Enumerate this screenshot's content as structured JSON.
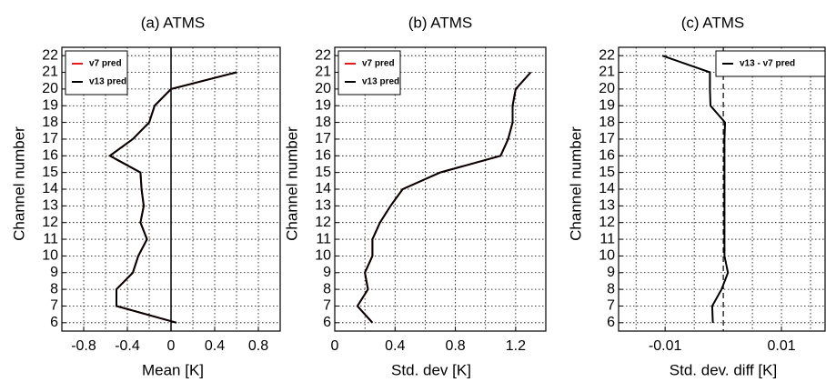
{
  "chart_data": [
    {
      "type": "line",
      "title": "(a) ATMS",
      "xlabel": "Mean [K]",
      "ylabel": "Channel number",
      "y": [
        6,
        7,
        8,
        9,
        10,
        11,
        12,
        13,
        14,
        15,
        16,
        17,
        18,
        19,
        20,
        21
      ],
      "series": [
        {
          "name": "v7 pred",
          "color": "#e41a1c",
          "values": [
            0.05,
            -0.5,
            -0.5,
            -0.35,
            -0.3,
            -0.22,
            -0.28,
            -0.25,
            -0.27,
            -0.28,
            -0.56,
            -0.35,
            -0.2,
            -0.15,
            0.0,
            0.6
          ]
        },
        {
          "name": "v13 pred",
          "color": "#000000",
          "values": [
            0.05,
            -0.5,
            -0.5,
            -0.35,
            -0.3,
            -0.22,
            -0.28,
            -0.25,
            -0.27,
            -0.28,
            -0.56,
            -0.35,
            -0.2,
            -0.15,
            0.0,
            0.6
          ]
        }
      ],
      "xlim": [
        -1,
        1
      ],
      "xticks": [
        -0.8,
        -0.4,
        0,
        0.4,
        0.8
      ],
      "xminor": [
        -0.6,
        -0.2,
        0.2,
        0.6
      ],
      "ylim": [
        5.5,
        22.5
      ],
      "yticks": [
        6,
        7,
        8,
        9,
        10,
        11,
        12,
        13,
        14,
        15,
        16,
        17,
        18,
        19,
        20,
        21,
        22
      ],
      "grid": true,
      "reference_line": 0,
      "reference_style": "solid",
      "legend": "upper left"
    },
    {
      "type": "line",
      "title": "(b) ATMS",
      "xlabel": "Std. dev  [K]",
      "ylabel": "Channel number",
      "y": [
        6,
        7,
        8,
        9,
        10,
        11,
        12,
        13,
        14,
        15,
        16,
        17,
        18,
        19,
        20,
        21
      ],
      "series": [
        {
          "name": "v7 pred",
          "color": "#e41a1c",
          "values": [
            0.25,
            0.15,
            0.22,
            0.2,
            0.25,
            0.25,
            0.3,
            0.37,
            0.45,
            0.7,
            1.1,
            1.15,
            1.18,
            1.18,
            1.2,
            1.3
          ]
        },
        {
          "name": "v13 pred",
          "color": "#000000",
          "values": [
            0.25,
            0.15,
            0.22,
            0.2,
            0.25,
            0.25,
            0.3,
            0.37,
            0.45,
            0.7,
            1.1,
            1.15,
            1.18,
            1.18,
            1.2,
            1.3
          ]
        }
      ],
      "xlim": [
        0,
        1.4
      ],
      "xticks": [
        0,
        0.4,
        0.8,
        1.2
      ],
      "xminor": [
        0.2,
        0.6,
        1.0
      ],
      "ylim": [
        5.5,
        22.5
      ],
      "yticks": [
        6,
        7,
        8,
        9,
        10,
        11,
        12,
        13,
        14,
        15,
        16,
        17,
        18,
        19,
        20,
        21,
        22
      ],
      "grid": true,
      "legend": "upper left"
    },
    {
      "type": "line",
      "title": "(c) ATMS",
      "xlabel": "Std. dev. diff [K]",
      "ylabel": "Channel number",
      "y": [
        6,
        7,
        8,
        9,
        10,
        11,
        12,
        13,
        14,
        15,
        16,
        17,
        18,
        19,
        20,
        21,
        22
      ],
      "series": [
        {
          "name": "v13 - v7 pred",
          "color": "#000000",
          "values": [
            -0.0018,
            -0.0019,
            -0.0003,
            0.0008,
            0.0002,
            0.0002,
            0.0002,
            0.0002,
            0.0002,
            0.0002,
            0.0002,
            0.0002,
            0.0003,
            -0.0022,
            -0.0023,
            -0.0023,
            -0.0105
          ]
        }
      ],
      "xlim": [
        -0.018,
        0.0175
      ],
      "xticks": [
        -0.01,
        0.01
      ],
      "xminor": [
        -0.015,
        -0.005,
        0.005,
        0.015
      ],
      "ylim": [
        5.5,
        22.5
      ],
      "yticks": [
        6,
        7,
        8,
        9,
        10,
        11,
        12,
        13,
        14,
        15,
        16,
        17,
        18,
        19,
        20,
        21,
        22
      ],
      "grid": true,
      "reference_line": 0,
      "reference_style": "dashed",
      "legend": "upper right"
    }
  ]
}
